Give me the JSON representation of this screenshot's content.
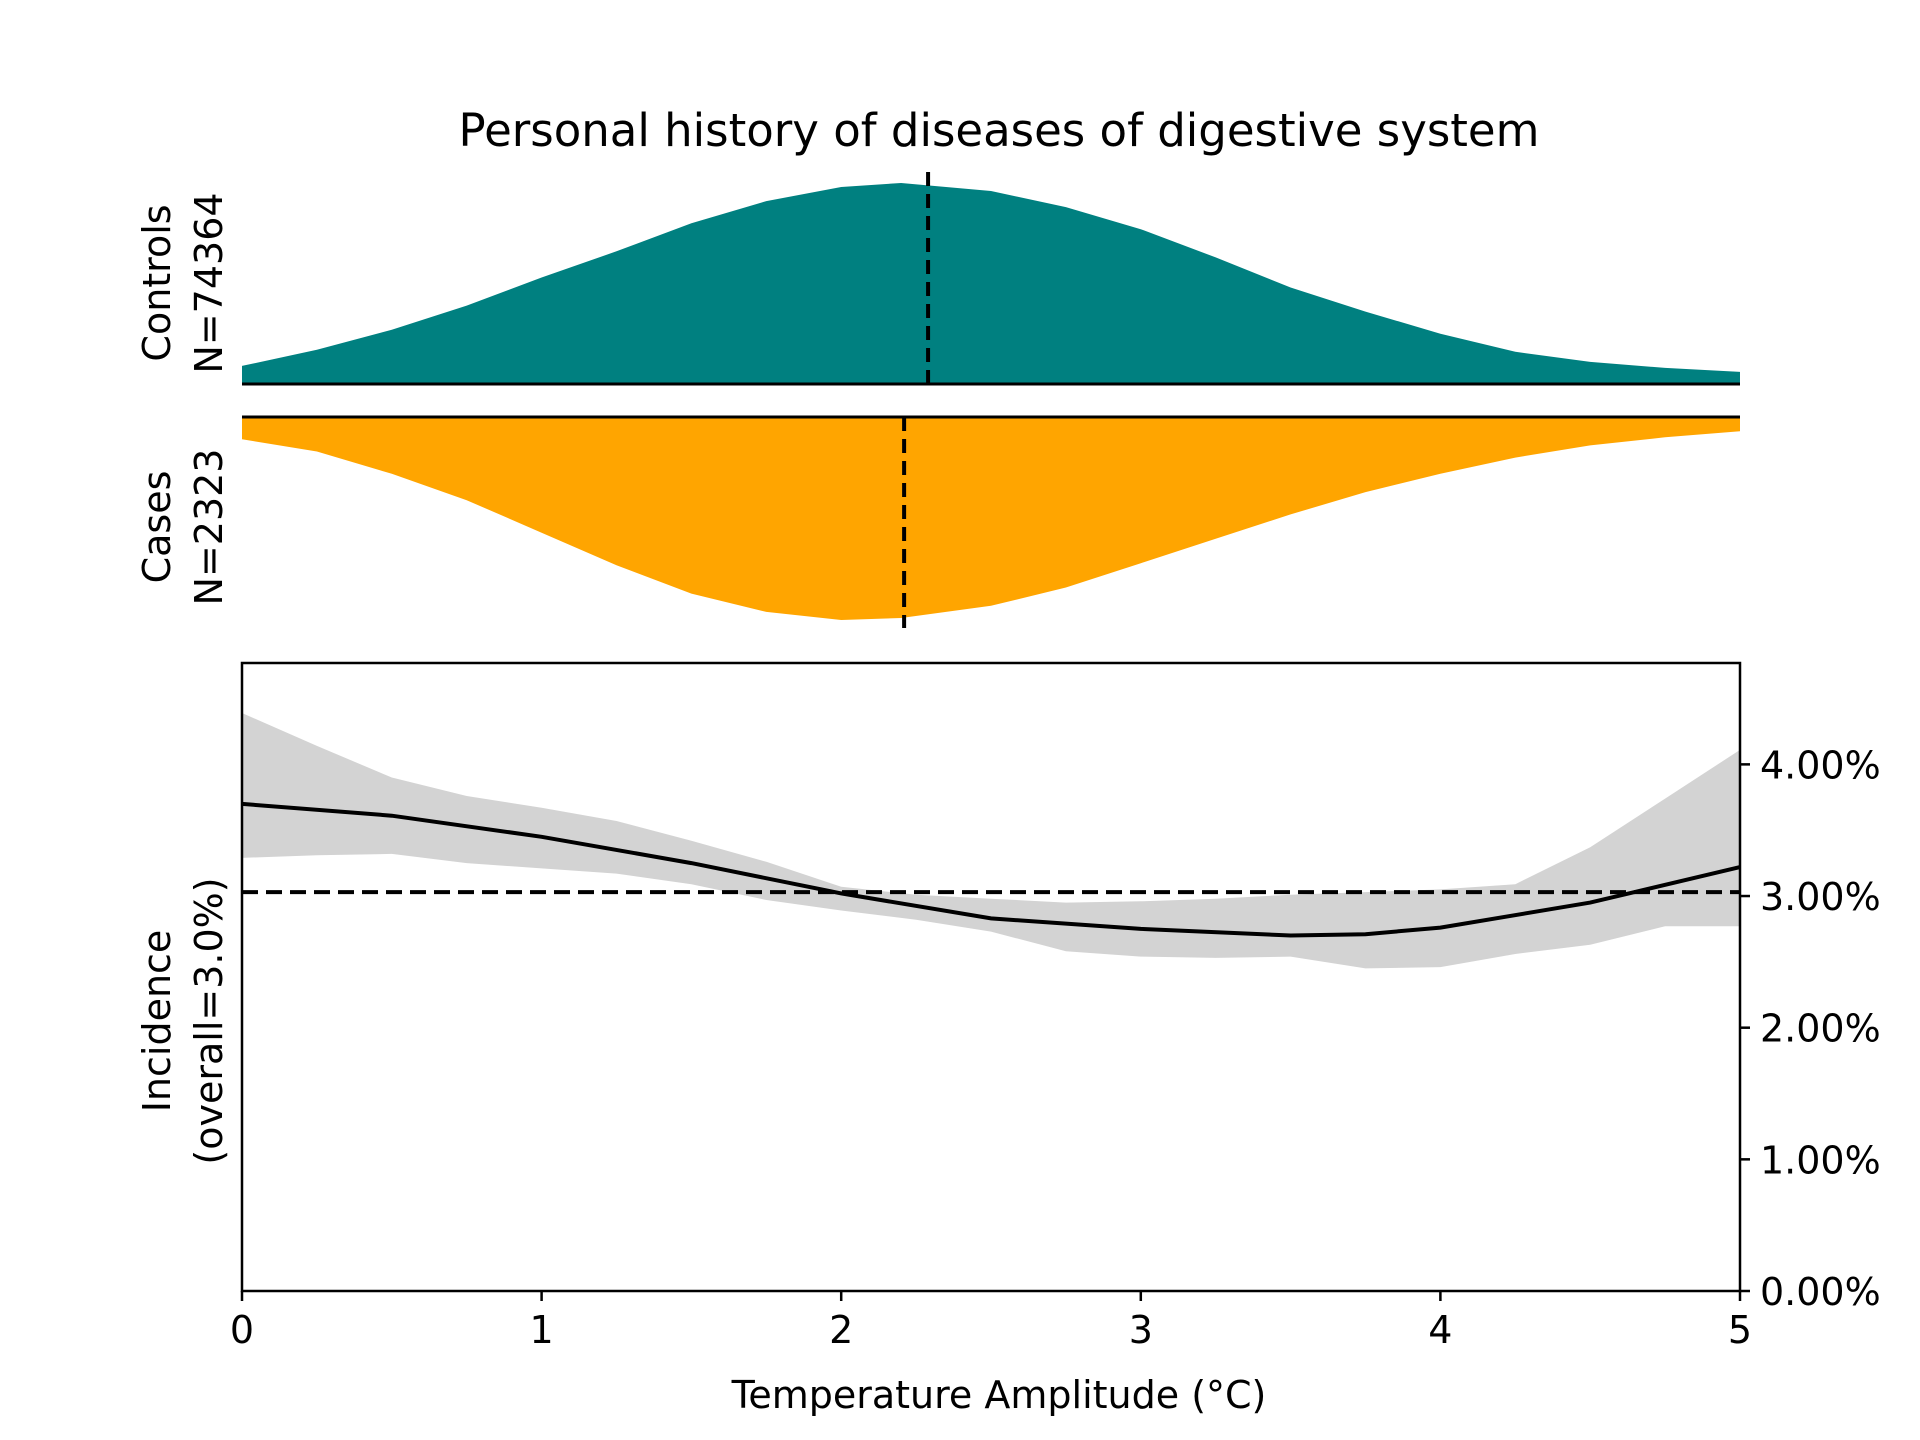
{
  "title": "Personal history of diseases of digestive system",
  "colors": {
    "controls": "#008080",
    "cases": "#FFA500",
    "ci_band": "#D3D3D3",
    "line": "#000000"
  },
  "chart_data": [
    {
      "type": "area",
      "panel": "controls-density",
      "ylabel_lines": [
        "Controls",
        "N=74364"
      ],
      "x_range": [
        0,
        5
      ],
      "x": [
        0,
        0.25,
        0.5,
        0.75,
        1,
        1.25,
        1.5,
        1.75,
        2,
        2.2,
        2.5,
        2.75,
        3,
        3.25,
        3.5,
        3.75,
        4,
        4.25,
        4.5,
        4.75,
        5
      ],
      "density_relative": [
        0.09,
        0.17,
        0.27,
        0.39,
        0.53,
        0.66,
        0.8,
        0.91,
        0.98,
        1.0,
        0.96,
        0.88,
        0.77,
        0.63,
        0.48,
        0.36,
        0.25,
        0.16,
        0.11,
        0.08,
        0.06
      ],
      "mean_x": 2.29
    },
    {
      "type": "area",
      "panel": "cases-density",
      "ylabel_lines": [
        "Cases",
        "N=2323"
      ],
      "x_range": [
        0,
        5
      ],
      "x": [
        0,
        0.25,
        0.5,
        0.75,
        1,
        1.25,
        1.5,
        1.75,
        2,
        2.2,
        2.5,
        2.75,
        3,
        3.25,
        3.5,
        3.75,
        4,
        4.25,
        4.5,
        4.75,
        5
      ],
      "density_relative": [
        0.11,
        0.17,
        0.28,
        0.41,
        0.57,
        0.73,
        0.87,
        0.96,
        1.0,
        0.99,
        0.93,
        0.84,
        0.72,
        0.6,
        0.48,
        0.37,
        0.28,
        0.2,
        0.14,
        0.1,
        0.07
      ],
      "mean_x": 2.21
    },
    {
      "type": "line",
      "panel": "incidence",
      "xlabel": "Temperature Amplitude (°C)",
      "ylabel_lines": [
        "Incidence",
        "(overall=3.0%)"
      ],
      "x_ticks": [
        0,
        1,
        2,
        3,
        4,
        5
      ],
      "y_ticks": [
        "0.00%",
        "1.00%",
        "2.00%",
        "3.00%",
        "4.00%"
      ],
      "y_tick_values": [
        0,
        0.01,
        0.02,
        0.03,
        0.04
      ],
      "xlim": [
        0,
        5
      ],
      "ylim": [
        0,
        0.0477
      ],
      "y_axis_side": "right",
      "reference_line": 0.0303,
      "series": [
        {
          "x": [
            0,
            0.5,
            1,
            1.5,
            2,
            2.5,
            3,
            3.5,
            3.75,
            4,
            4.5,
            5
          ],
          "y": [
            0.037,
            0.0361,
            0.0345,
            0.0325,
            0.0302,
            0.0283,
            0.0275,
            0.027,
            0.0271,
            0.0276,
            0.0295,
            0.0322
          ]
        }
      ],
      "ci_band": {
        "x": [
          0,
          0.25,
          0.5,
          0.75,
          1,
          1.25,
          1.5,
          1.75,
          2,
          2.25,
          2.5,
          2.75,
          3,
          3.25,
          3.5,
          3.75,
          4,
          4.25,
          4.5,
          4.75,
          5
        ],
        "upper": [
          0.0439,
          0.0414,
          0.039,
          0.0376,
          0.0367,
          0.0357,
          0.0342,
          0.0326,
          0.0307,
          0.0301,
          0.0298,
          0.0295,
          0.0296,
          0.0298,
          0.0301,
          0.0303,
          0.0305,
          0.0309,
          0.0337,
          0.0374,
          0.0411
        ],
        "lower": [
          0.0329,
          0.0331,
          0.0332,
          0.0325,
          0.0321,
          0.0317,
          0.0309,
          0.0297,
          0.0289,
          0.0282,
          0.0273,
          0.0258,
          0.0254,
          0.0253,
          0.0254,
          0.0245,
          0.0246,
          0.0256,
          0.0263,
          0.0277,
          0.0277
        ]
      }
    }
  ]
}
